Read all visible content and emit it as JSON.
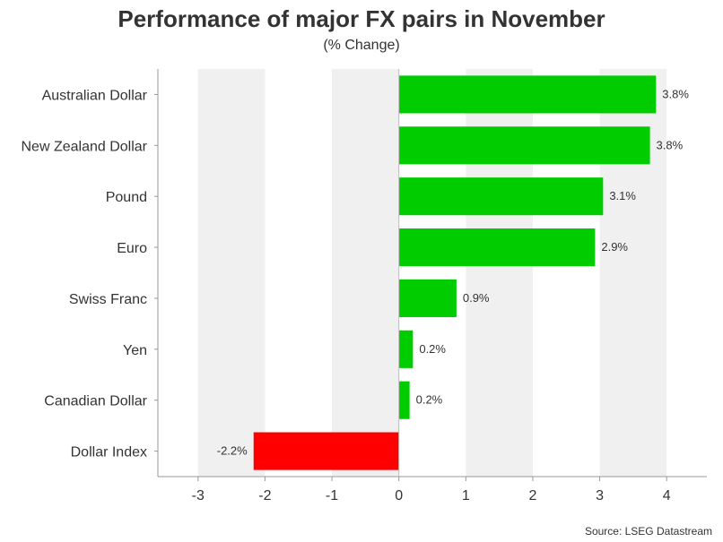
{
  "chart_data": {
    "type": "bar",
    "orientation": "horizontal",
    "title": "Performance of major FX pairs in November",
    "subtitle": "(% Change)",
    "source": "Source: LSEG Datastream",
    "categories": [
      "Australian Dollar",
      "New Zealand Dollar",
      "Pound",
      "Euro",
      "Swiss Franc",
      "Yen",
      "Canadian Dollar",
      "Dollar Index"
    ],
    "values": [
      3.84,
      3.75,
      3.05,
      2.93,
      0.86,
      0.21,
      0.16,
      -2.17
    ],
    "data_labels": [
      "3.8%",
      "3.8%",
      "3.1%",
      "2.9%",
      "0.9%",
      "0.2%",
      "0.2%",
      "-2.2%"
    ],
    "xlim": [
      -3.6,
      4.6
    ],
    "xticks": [
      -3,
      -2,
      -1,
      0,
      1,
      2,
      3,
      4
    ],
    "xtick_labels": [
      "-3",
      "-2",
      "-1",
      "0",
      "1",
      "2",
      "3",
      "4"
    ],
    "grid": "alternating vertical bands",
    "colors": {
      "positive": "#00cc00",
      "negative": "#ff0000",
      "band": "#f0f0f0",
      "axis": "#999999"
    }
  }
}
